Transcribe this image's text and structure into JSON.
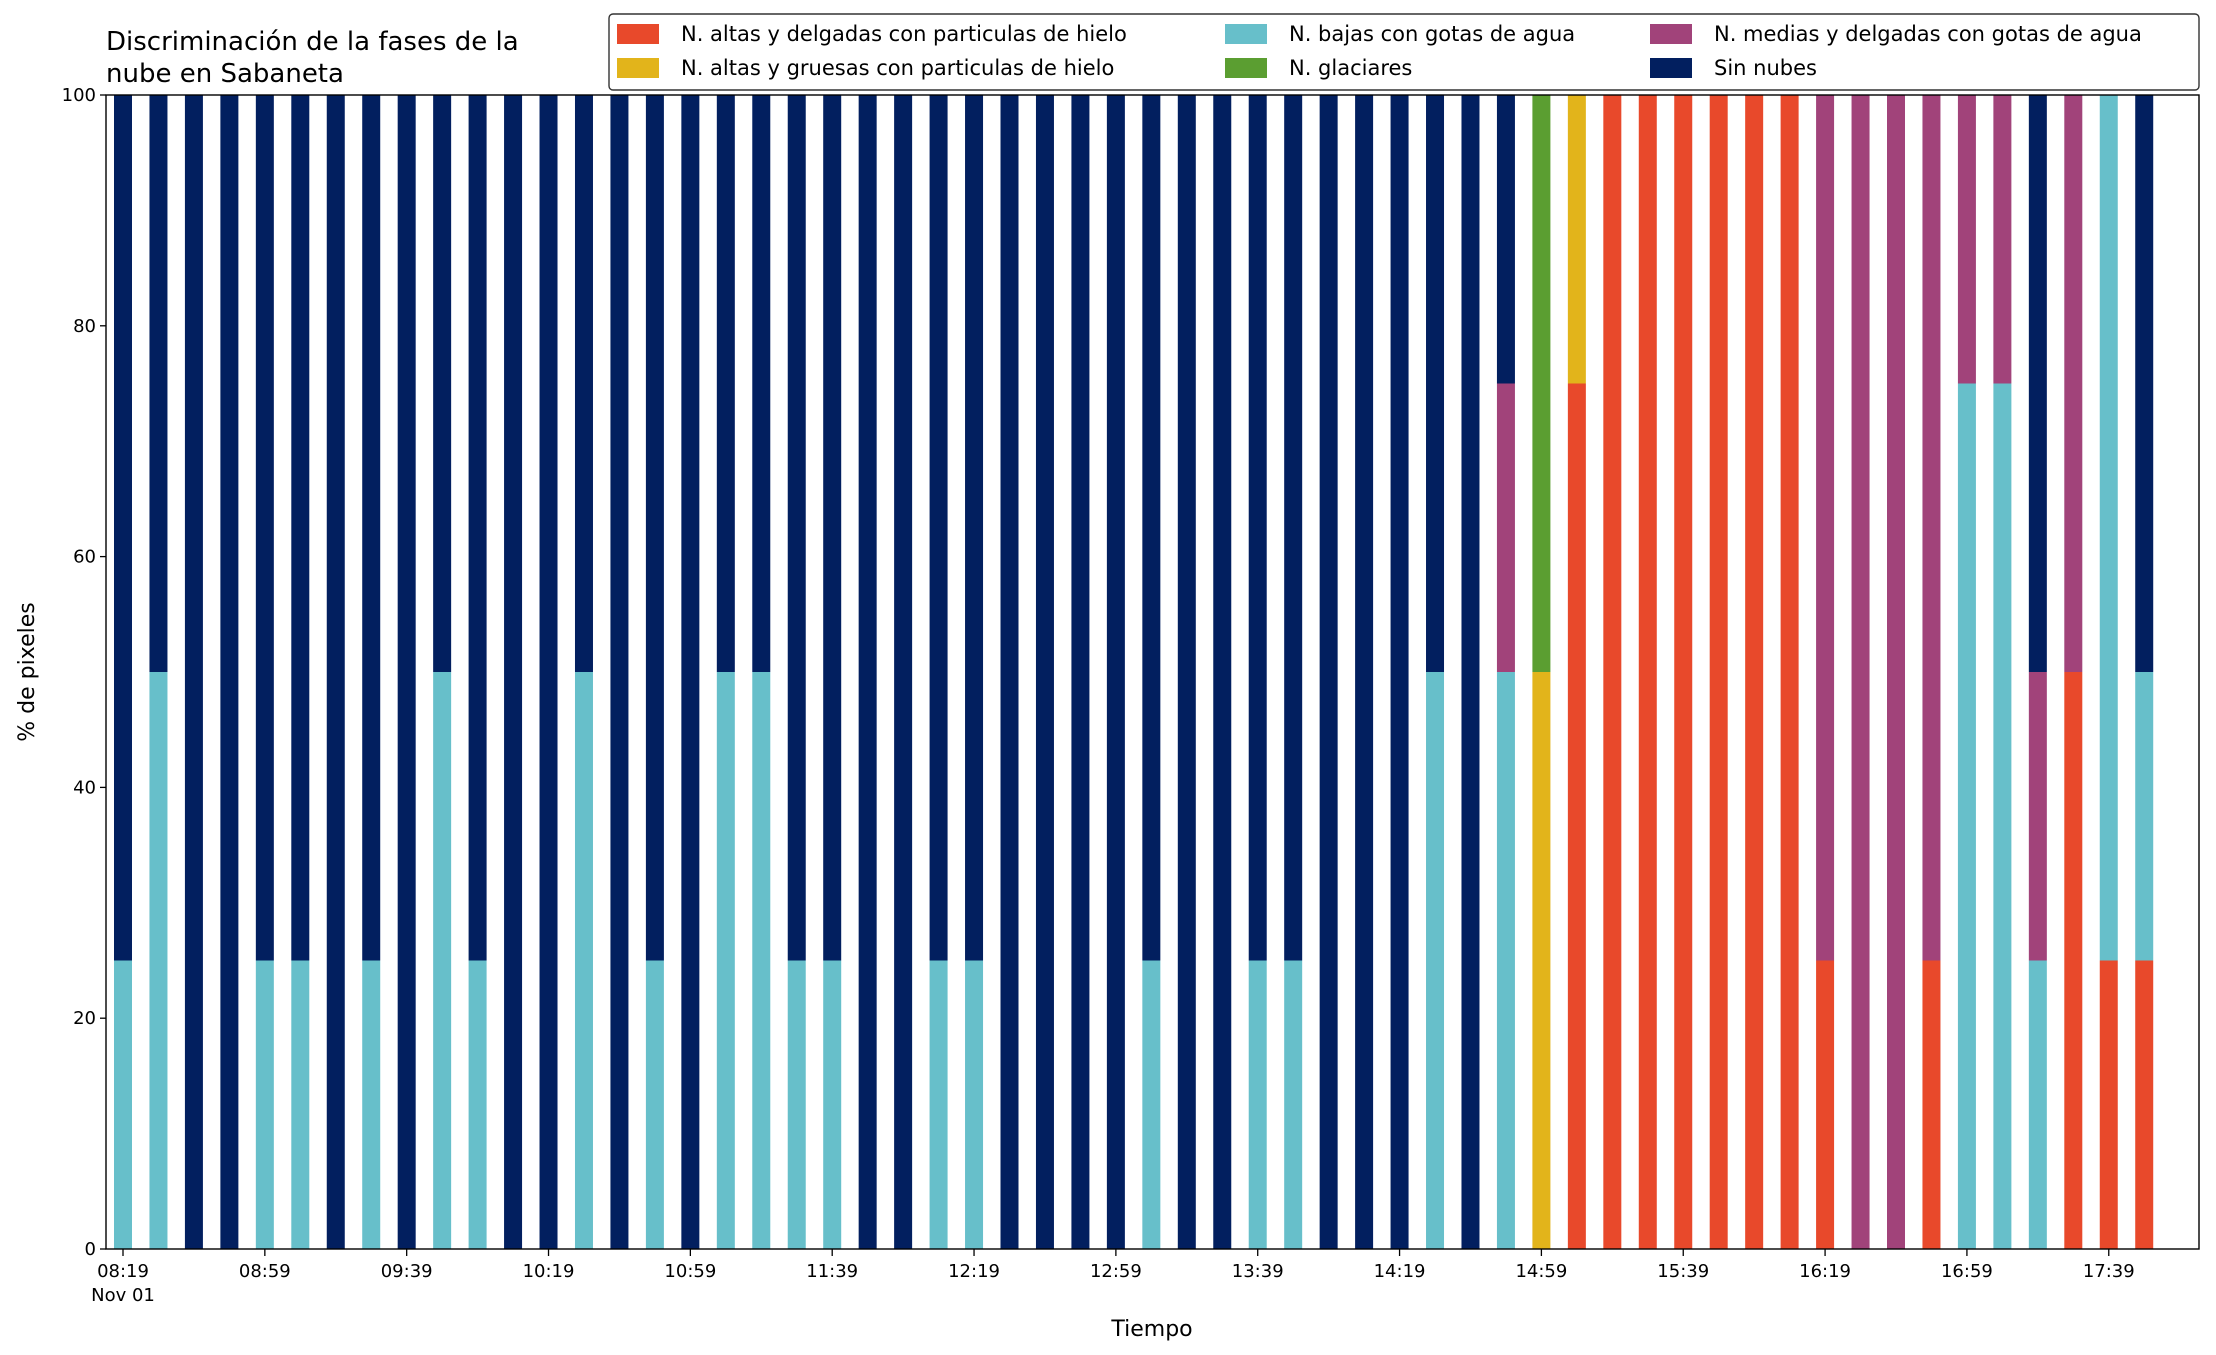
{
  "chart_data": {
    "type": "stacked_bar",
    "title": [
      "Discriminación de la fases de la",
      "nube en Sabaneta"
    ],
    "xlabel": "Tiempo",
    "ylabel": "% de pixeles",
    "x_date_label": "Nov 01",
    "categories": [
      "08:19",
      null,
      null,
      null,
      "08:59",
      null,
      null,
      null,
      "09:39",
      null,
      null,
      null,
      "10:19",
      null,
      null,
      null,
      "10:59",
      null,
      null,
      null,
      "11:39",
      null,
      null,
      null,
      "12:19",
      null,
      null,
      null,
      "12:59",
      null,
      null,
      null,
      "13:39",
      null,
      null,
      null,
      "14:19",
      null,
      null,
      null,
      "14:59",
      null,
      null,
      null,
      "15:39",
      null,
      null,
      null,
      "16:19",
      null,
      null,
      null,
      "16:59",
      null,
      null,
      null,
      "17:39",
      null
    ],
    "ylim": [
      0,
      100
    ],
    "yticks": [
      0,
      20,
      40,
      60,
      80,
      100
    ],
    "grid": false,
    "series": [
      {
        "name": "N. altas y delgadas con particulas de hielo",
        "color": "#e8492b",
        "values": [
          0,
          0,
          0,
          0,
          0,
          0,
          0,
          0,
          0,
          0,
          0,
          0,
          0,
          0,
          0,
          0,
          0,
          0,
          0,
          0,
          0,
          0,
          0,
          0,
          0,
          0,
          0,
          0,
          0,
          0,
          0,
          0,
          0,
          0,
          0,
          0,
          0,
          0,
          0,
          0,
          0,
          75,
          100,
          100,
          100,
          100,
          100,
          100,
          25,
          0,
          0,
          25,
          0,
          0,
          0,
          50,
          25,
          25
        ]
      },
      {
        "name": "N. altas y gruesas con particulas de hielo",
        "color": "#e2b41b",
        "values": [
          0,
          0,
          0,
          0,
          0,
          0,
          0,
          0,
          0,
          0,
          0,
          0,
          0,
          0,
          0,
          0,
          0,
          0,
          0,
          0,
          0,
          0,
          0,
          0,
          0,
          0,
          0,
          0,
          0,
          0,
          0,
          0,
          0,
          0,
          0,
          0,
          0,
          0,
          0,
          0,
          50,
          25,
          0,
          0,
          0,
          0,
          0,
          0,
          0,
          0,
          0,
          0,
          0,
          0,
          0,
          0,
          0,
          0
        ]
      },
      {
        "name": "N. bajas con gotas de agua",
        "color": "#67bfca",
        "values": [
          25,
          50,
          0,
          0,
          25,
          25,
          0,
          25,
          0,
          50,
          25,
          0,
          0,
          50,
          0,
          25,
          0,
          50,
          50,
          25,
          25,
          0,
          0,
          25,
          25,
          0,
          0,
          0,
          0,
          25,
          0,
          0,
          25,
          25,
          0,
          0,
          0,
          50,
          0,
          50,
          0,
          0,
          0,
          0,
          0,
          0,
          0,
          0,
          0,
          0,
          0,
          0,
          75,
          75,
          25,
          0,
          75,
          25
        ]
      },
      {
        "name": "N. glaciares",
        "color": "#5b9e31",
        "values": [
          0,
          0,
          0,
          0,
          0,
          0,
          0,
          0,
          0,
          0,
          0,
          0,
          0,
          0,
          0,
          0,
          0,
          0,
          0,
          0,
          0,
          0,
          0,
          0,
          0,
          0,
          0,
          0,
          0,
          0,
          0,
          0,
          0,
          0,
          0,
          0,
          0,
          0,
          0,
          0,
          50,
          0,
          0,
          0,
          0,
          0,
          0,
          0,
          0,
          0,
          0,
          0,
          0,
          0,
          0,
          0,
          0,
          0
        ]
      },
      {
        "name": "N. medias y delgadas con gotas de agua",
        "color": "#a1437a",
        "values": [
          0,
          0,
          0,
          0,
          0,
          0,
          0,
          0,
          0,
          0,
          0,
          0,
          0,
          0,
          0,
          0,
          0,
          0,
          0,
          0,
          0,
          0,
          0,
          0,
          0,
          0,
          0,
          0,
          0,
          0,
          0,
          0,
          0,
          0,
          0,
          0,
          0,
          0,
          0,
          25,
          0,
          0,
          0,
          0,
          0,
          0,
          0,
          0,
          75,
          100,
          100,
          75,
          25,
          25,
          25,
          50,
          0,
          0
        ]
      },
      {
        "name": "Sin nubes",
        "color": "#021f5f",
        "values": [
          75,
          50,
          100,
          100,
          75,
          75,
          100,
          75,
          100,
          50,
          75,
          100,
          100,
          50,
          100,
          75,
          100,
          50,
          50,
          75,
          75,
          100,
          100,
          75,
          75,
          100,
          100,
          100,
          100,
          75,
          100,
          100,
          75,
          75,
          100,
          100,
          100,
          50,
          100,
          25,
          0,
          0,
          0,
          0,
          0,
          0,
          0,
          0,
          0,
          0,
          0,
          0,
          0,
          0,
          50,
          0,
          0,
          50
        ]
      }
    ]
  }
}
